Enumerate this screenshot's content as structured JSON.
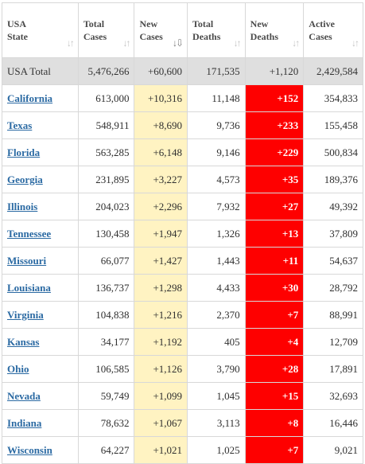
{
  "headers": [
    {
      "line1": "USA",
      "line2": "State",
      "sort": "↓↑",
      "active": false
    },
    {
      "line1": "Total",
      "line2": "Cases",
      "sort": "↓↑",
      "active": false
    },
    {
      "line1": "New",
      "line2": "Cases",
      "sort": "↓⇩",
      "active": true
    },
    {
      "line1": "Total",
      "line2": "Deaths",
      "sort": "↓↑",
      "active": false
    },
    {
      "line1": "New",
      "line2": "Deaths",
      "sort": "↓↑",
      "active": false
    },
    {
      "line1": "Active",
      "line2": "Cases",
      "sort": "↓↑",
      "active": false
    }
  ],
  "total": {
    "state": "USA Total",
    "total_cases": "5,476,266",
    "new_cases": "+60,600",
    "total_deaths": "171,535",
    "new_deaths": "+1,120",
    "active_cases": "2,429,584"
  },
  "rows": [
    {
      "state": "California",
      "total_cases": "613,000",
      "new_cases": "+10,316",
      "total_deaths": "11,148",
      "new_deaths": "+152",
      "active_cases": "354,833"
    },
    {
      "state": "Texas",
      "total_cases": "548,911",
      "new_cases": "+8,690",
      "total_deaths": "9,736",
      "new_deaths": "+233",
      "active_cases": "155,458"
    },
    {
      "state": "Florida",
      "total_cases": "563,285",
      "new_cases": "+6,148",
      "total_deaths": "9,146",
      "new_deaths": "+229",
      "active_cases": "500,834"
    },
    {
      "state": "Georgia",
      "total_cases": "231,895",
      "new_cases": "+3,227",
      "total_deaths": "4,573",
      "new_deaths": "+35",
      "active_cases": "189,376"
    },
    {
      "state": "Illinois",
      "total_cases": "204,023",
      "new_cases": "+2,296",
      "total_deaths": "7,932",
      "new_deaths": "+27",
      "active_cases": "49,392"
    },
    {
      "state": "Tennessee",
      "total_cases": "130,458",
      "new_cases": "+1,947",
      "total_deaths": "1,326",
      "new_deaths": "+13",
      "active_cases": "37,809"
    },
    {
      "state": "Missouri",
      "total_cases": "66,077",
      "new_cases": "+1,427",
      "total_deaths": "1,443",
      "new_deaths": "+11",
      "active_cases": "54,637"
    },
    {
      "state": "Louisiana",
      "total_cases": "136,737",
      "new_cases": "+1,298",
      "total_deaths": "4,433",
      "new_deaths": "+30",
      "active_cases": "28,792"
    },
    {
      "state": "Virginia",
      "total_cases": "104,838",
      "new_cases": "+1,216",
      "total_deaths": "2,370",
      "new_deaths": "+7",
      "active_cases": "88,991"
    },
    {
      "state": "Kansas",
      "total_cases": "34,177",
      "new_cases": "+1,192",
      "total_deaths": "405",
      "new_deaths": "+4",
      "active_cases": "12,709"
    },
    {
      "state": "Ohio",
      "total_cases": "106,585",
      "new_cases": "+1,126",
      "total_deaths": "3,790",
      "new_deaths": "+28",
      "active_cases": "17,891"
    },
    {
      "state": "Nevada",
      "total_cases": "59,749",
      "new_cases": "+1,099",
      "total_deaths": "1,045",
      "new_deaths": "+15",
      "active_cases": "32,693"
    },
    {
      "state": "Indiana",
      "total_cases": "78,632",
      "new_cases": "+1,067",
      "total_deaths": "3,113",
      "new_deaths": "+8",
      "active_cases": "16,446"
    },
    {
      "state": "Wisconsin",
      "total_cases": "64,227",
      "new_cases": "+1,021",
      "total_deaths": "1,025",
      "new_deaths": "+7",
      "active_cases": "9,021"
    }
  ],
  "colors": {
    "link": "#2b6aa3",
    "new_cases_bg": "#fff3c2",
    "new_deaths_bg": "#fe0000",
    "total_row_bg": "#dfdfdf"
  }
}
